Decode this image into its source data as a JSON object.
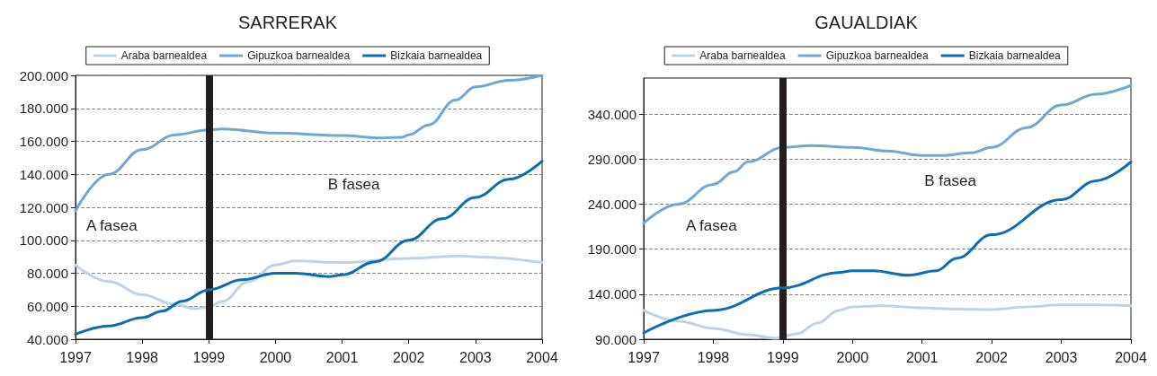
{
  "chart_data": [
    {
      "type": "line",
      "title": "SARRERAK",
      "xlim": [
        1997,
        2004
      ],
      "xticks": [
        1997,
        1998,
        1999,
        2000,
        2001,
        2002,
        2003,
        2004
      ],
      "ylim": [
        40000,
        200000
      ],
      "yticks": [
        {
          "value": 40000,
          "label": "40.000"
        },
        {
          "value": 60000,
          "label": "60.000"
        },
        {
          "value": 80000,
          "label": "80.000"
        },
        {
          "value": 100000,
          "label": "100.000"
        },
        {
          "value": 120000,
          "label": "120.000"
        },
        {
          "value": 140000,
          "label": "140.000"
        },
        {
          "value": 160000,
          "label": "160.000"
        },
        {
          "value": 180000,
          "label": "180.000"
        },
        {
          "value": 200000,
          "label": "200.000"
        }
      ],
      "grid": "y",
      "legend": "top",
      "line_style": "solid",
      "ref_lines": [
        {
          "axis": "x",
          "value": 1999,
          "color": "#231f20"
        }
      ],
      "annotations": [
        "A fasea",
        "B fasea"
      ],
      "series": [
        {
          "name": "Araba barnealdea",
          "color": "#bcd4ea",
          "x": [
            1997,
            1997.5,
            1998,
            1998.5,
            1998.8,
            1999,
            1999.2,
            1999.6,
            2000,
            2000.3,
            2001,
            2002,
            2002.8,
            2003,
            2004
          ],
          "values": [
            85000,
            75000,
            67000,
            61000,
            58500,
            59500,
            63000,
            75000,
            85000,
            87500,
            86500,
            89000,
            90500,
            90000,
            86500
          ]
        },
        {
          "name": "Gipuzkoa barnealdea",
          "color": "#6fa8d6",
          "x": [
            1997,
            1997.5,
            1998,
            1998.5,
            1999,
            1999.2,
            2000,
            2001,
            2001.6,
            2001.9,
            2002,
            2002.3,
            2002.7,
            2003,
            2003.5,
            2004
          ],
          "values": [
            118000,
            140000,
            155000,
            164000,
            167000,
            167500,
            165000,
            163500,
            162000,
            162500,
            164000,
            170000,
            185000,
            193000,
            197000,
            200000
          ]
        },
        {
          "name": "Bizkaia barnealdea",
          "color": "#0a6eb0",
          "x": [
            1997,
            1997.5,
            1998,
            1998.3,
            1998.6,
            1999,
            1999.5,
            2000,
            2000.3,
            2000.8,
            2001,
            2001.5,
            2002,
            2002.5,
            2003,
            2003.5,
            2004
          ],
          "values": [
            43000,
            48000,
            53000,
            57000,
            63000,
            70000,
            76000,
            80000,
            80000,
            78000,
            79000,
            87000,
            100000,
            113000,
            126000,
            137000,
            148000
          ]
        }
      ]
    },
    {
      "type": "line",
      "title": "GAUALDIAK",
      "xlim": [
        1997,
        2004
      ],
      "xticks": [
        1997,
        1998,
        1999,
        2000,
        2001,
        2002,
        2003,
        2004
      ],
      "ylim": [
        90000,
        380000
      ],
      "yticks": [
        {
          "value": 90000,
          "label": "90.000"
        },
        {
          "value": 140000,
          "label": "140.000"
        },
        {
          "value": 190000,
          "label": "190.000"
        },
        {
          "value": 240000,
          "label": "240.000"
        },
        {
          "value": 290000,
          "label": "290.000"
        },
        {
          "value": 340000,
          "label": "340.000"
        }
      ],
      "grid": "y",
      "legend": "top",
      "line_style": "solid",
      "ref_lines": [
        {
          "axis": "x",
          "value": 1999,
          "color": "#231f20"
        }
      ],
      "annotations": [
        "A fasea",
        "B fasea"
      ],
      "series": [
        {
          "name": "Araba barnealdea",
          "color": "#bcd4ea",
          "x": [
            1997,
            1997.5,
            1998,
            1998.5,
            1998.9,
            1999.2,
            1999.5,
            1999.8,
            2000,
            2000.4,
            2001,
            2001.5,
            2002,
            2002.5,
            2003,
            2003.5,
            2004
          ],
          "values": [
            122000,
            110000,
            102000,
            95000,
            91000,
            96000,
            108000,
            122000,
            126000,
            127000,
            125000,
            123500,
            123000,
            126000,
            128000,
            128000,
            127000
          ]
        },
        {
          "name": "Gipuzkoa barnealdea",
          "color": "#6fa8d6",
          "x": [
            1997,
            1997.5,
            1998,
            1998.3,
            1998.5,
            1999,
            1999.4,
            2000,
            2000.5,
            2001,
            2001.3,
            2001.7,
            2002,
            2002.5,
            2003,
            2003.5,
            2004
          ],
          "values": [
            219000,
            240000,
            262000,
            276000,
            287000,
            303000,
            305000,
            303000,
            299000,
            294000,
            294000,
            297000,
            303000,
            325000,
            350000,
            362000,
            372000
          ]
        },
        {
          "name": "Bizkaia barnealdea",
          "color": "#0a6eb0",
          "x": [
            1997,
            1998,
            1999,
            1999.8,
            2000,
            2000.3,
            2000.8,
            2001.2,
            2001.5,
            2002,
            2003,
            2003.5,
            2004
          ],
          "values": [
            97000,
            122000,
            147000,
            164000,
            166000,
            166000,
            161000,
            166000,
            180000,
            206000,
            245000,
            266000,
            287000
          ]
        }
      ]
    }
  ]
}
